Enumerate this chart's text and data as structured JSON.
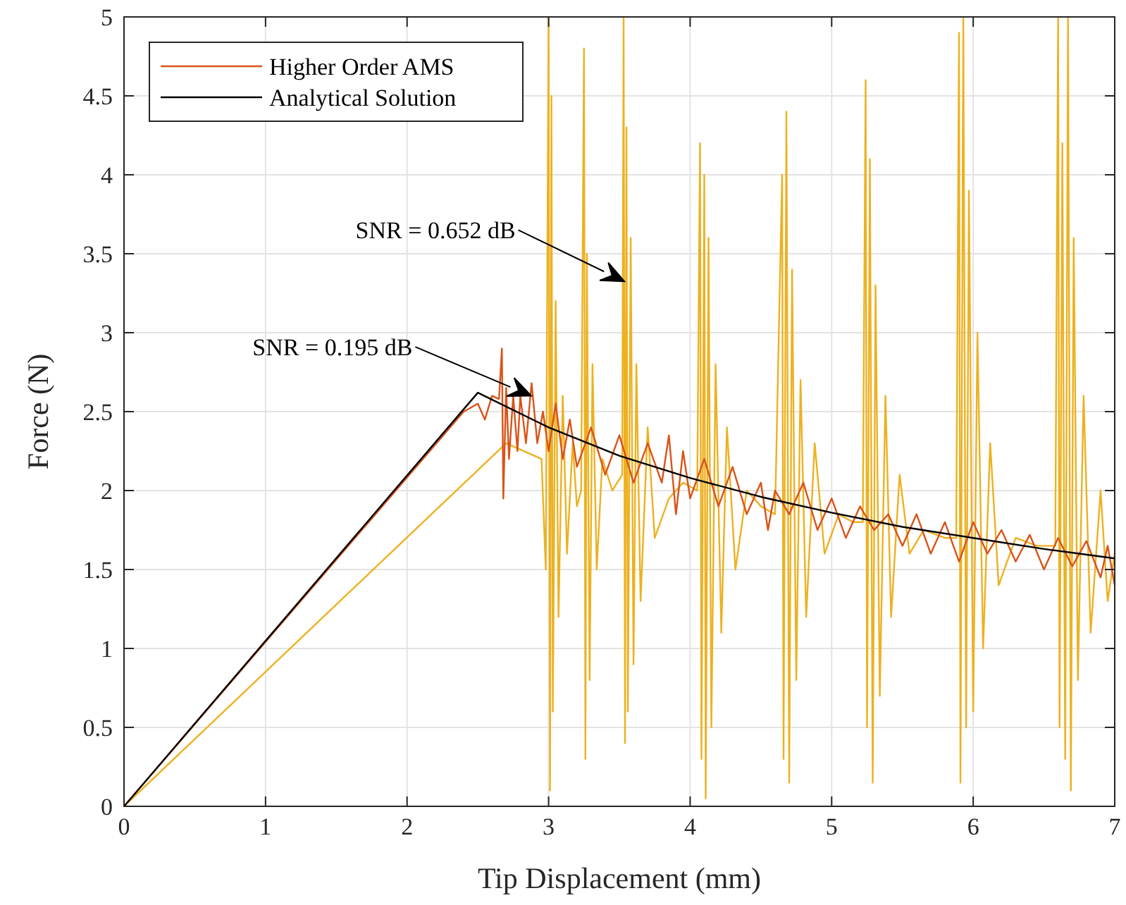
{
  "chart_data": {
    "type": "line",
    "xlabel": "Tip Displacement (mm)",
    "ylabel": "Force (N)",
    "xlim": [
      0,
      7
    ],
    "ylim": [
      0,
      5
    ],
    "xticks": [
      0,
      1,
      2,
      3,
      4,
      5,
      6,
      7
    ],
    "yticks": [
      0,
      0.5,
      1,
      1.5,
      2,
      2.5,
      3,
      3.5,
      4,
      4.5,
      5
    ],
    "grid": true,
    "legend": "top left",
    "line_style": "solid",
    "annotations": [
      "SNR = 0.652 dB",
      "SNR = 0.195 dB"
    ],
    "series": [
      {
        "color": "#edb120",
        "x": [
          0,
          2.7,
          2.95,
          2.98,
          3.0,
          3.01,
          3.02,
          3.03,
          3.05,
          3.07,
          3.1,
          3.13,
          3.17,
          3.2,
          3.23,
          3.25,
          3.26,
          3.27,
          3.29,
          3.31,
          3.34,
          3.38,
          3.45,
          3.52,
          3.53,
          3.54,
          3.55,
          3.56,
          3.58,
          3.6,
          3.62,
          3.65,
          3.7,
          3.75,
          3.85,
          3.95,
          4.05,
          4.07,
          4.08,
          4.1,
          4.11,
          4.13,
          4.15,
          4.18,
          4.22,
          4.26,
          4.32,
          4.4,
          4.5,
          4.6,
          4.65,
          4.66,
          4.68,
          4.7,
          4.72,
          4.75,
          4.78,
          4.82,
          4.88,
          4.95,
          5.05,
          5.15,
          5.22,
          5.24,
          5.25,
          5.27,
          5.29,
          5.31,
          5.34,
          5.38,
          5.42,
          5.48,
          5.55,
          5.65,
          5.8,
          5.88,
          5.9,
          5.91,
          5.93,
          5.95,
          5.97,
          6.0,
          6.03,
          6.07,
          6.12,
          6.18,
          6.3,
          6.45,
          6.58,
          6.6,
          6.61,
          6.63,
          6.65,
          6.67,
          6.69,
          6.71,
          6.74,
          6.78,
          6.83,
          6.9,
          6.95,
          7.0
        ],
        "values": [
          0,
          2.3,
          2.2,
          1.5,
          5,
          0.1,
          4.5,
          0.6,
          3.2,
          1.2,
          2.6,
          1.6,
          2.3,
          1.9,
          2.0,
          4.8,
          0.3,
          3.5,
          0.8,
          2.8,
          1.5,
          2.2,
          2.0,
          2.1,
          5.0,
          0.4,
          4.3,
          0.6,
          3.6,
          0.9,
          2.8,
          1.3,
          2.4,
          1.7,
          1.95,
          2.05,
          2.0,
          4.2,
          0.3,
          4.0,
          0.05,
          3.6,
          0.5,
          2.8,
          1.1,
          2.4,
          1.5,
          2.0,
          1.9,
          1.85,
          4.0,
          0.3,
          4.4,
          0.15,
          3.4,
          0.8,
          2.7,
          1.2,
          2.3,
          1.6,
          1.85,
          1.8,
          1.8,
          4.6,
          0.5,
          4.1,
          0.15,
          3.3,
          0.7,
          2.6,
          1.2,
          2.1,
          1.6,
          1.75,
          1.7,
          1.7,
          4.9,
          0.15,
          5.0,
          0.5,
          3.9,
          0.6,
          3.0,
          1.0,
          2.3,
          1.4,
          1.7,
          1.65,
          1.65,
          5.0,
          0.5,
          4.2,
          0.3,
          5.0,
          0.1,
          3.6,
          0.8,
          2.6,
          1.1,
          2.0,
          1.3,
          1.6
        ]
      },
      {
        "name": "Higher Order AMS",
        "color": "#d95319",
        "x": [
          0,
          2.4,
          2.5,
          2.55,
          2.6,
          2.65,
          2.67,
          2.68,
          2.7,
          2.72,
          2.75,
          2.78,
          2.8,
          2.84,
          2.88,
          2.92,
          2.96,
          3.0,
          3.05,
          3.1,
          3.15,
          3.2,
          3.3,
          3.4,
          3.5,
          3.6,
          3.7,
          3.8,
          3.85,
          3.9,
          3.95,
          4.0,
          4.1,
          4.2,
          4.3,
          4.4,
          4.5,
          4.55,
          4.6,
          4.7,
          4.8,
          4.9,
          5.0,
          5.1,
          5.2,
          5.3,
          5.4,
          5.5,
          5.6,
          5.7,
          5.8,
          5.9,
          6.0,
          6.1,
          6.2,
          6.3,
          6.4,
          6.5,
          6.6,
          6.7,
          6.8,
          6.9,
          6.95,
          7.0
        ],
        "values": [
          0,
          2.5,
          2.55,
          2.45,
          2.6,
          2.58,
          2.9,
          1.95,
          2.65,
          2.2,
          2.6,
          2.25,
          2.6,
          2.3,
          2.68,
          2.3,
          2.5,
          2.25,
          2.55,
          2.2,
          2.45,
          2.15,
          2.4,
          2.1,
          2.35,
          2.05,
          2.3,
          2.05,
          2.35,
          1.85,
          2.25,
          1.95,
          2.2,
          1.9,
          2.15,
          1.85,
          2.05,
          1.75,
          2.0,
          1.85,
          2.05,
          1.75,
          1.95,
          1.7,
          1.9,
          1.75,
          1.85,
          1.65,
          1.85,
          1.6,
          1.8,
          1.55,
          1.8,
          1.6,
          1.75,
          1.55,
          1.72,
          1.5,
          1.7,
          1.52,
          1.68,
          1.45,
          1.65,
          1.4
        ]
      },
      {
        "name": "Analytical Solution",
        "color": "#000000",
        "x": [
          0,
          2.5,
          3,
          3.5,
          4,
          4.5,
          5,
          5.5,
          6,
          6.5,
          7
        ],
        "values": [
          0,
          2.62,
          2.4,
          2.22,
          2.08,
          1.96,
          1.86,
          1.77,
          1.7,
          1.63,
          1.57
        ]
      }
    ]
  }
}
